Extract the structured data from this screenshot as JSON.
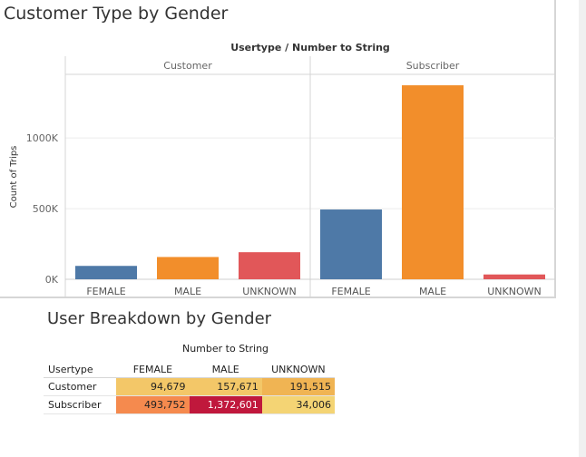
{
  "bar_chart": {
    "title": "Customer Type by Gender",
    "header_title": "Usertype / Number to String",
    "ylabel": "Count of Trips",
    "yticks": [
      {
        "value": 0,
        "label": "0K"
      },
      {
        "value": 500000,
        "label": "500K"
      },
      {
        "value": 1000000,
        "label": "1000K"
      }
    ]
  },
  "table": {
    "title": "User Breakdown by Gender",
    "column_group_header": "Number to String",
    "corner_header": "Usertype",
    "columns": [
      "FEMALE",
      "MALE",
      "UNKNOWN"
    ],
    "rows": [
      {
        "label": "Customer",
        "cells": [
          "94,679",
          "157,671",
          "191,515"
        ],
        "colors": [
          "#f3c768",
          "#f3c768",
          "#f0b453"
        ]
      },
      {
        "label": "Subscriber",
        "cells": [
          "493,752",
          "1,372,601",
          "34,006"
        ],
        "colors": [
          "#f58a4e",
          "#c0183c",
          "#f4d474"
        ]
      }
    ]
  },
  "chart_data": [
    {
      "type": "bar",
      "title": "Customer Type by Gender",
      "column_header": "Usertype / Number to String",
      "ylabel": "Count of Trips",
      "ylim": [
        0,
        1450000
      ],
      "grid": true,
      "panels": [
        "Customer",
        "Subscriber"
      ],
      "categories": [
        "FEMALE",
        "MALE",
        "UNKNOWN"
      ],
      "colors": {
        "FEMALE": "#4e79a7",
        "MALE": "#f28e2b",
        "UNKNOWN": "#e15759"
      },
      "series": [
        {
          "name": "Customer",
          "values": [
            94679,
            157671,
            191515
          ]
        },
        {
          "name": "Subscriber",
          "values": [
            493752,
            1372601,
            34006
          ]
        }
      ]
    },
    {
      "type": "table",
      "title": "User Breakdown by Gender",
      "column_header": "Number to String",
      "row_header": "Usertype",
      "columns": [
        "FEMALE",
        "MALE",
        "UNKNOWN"
      ],
      "rows": [
        "Customer",
        "Subscriber"
      ],
      "values": [
        [
          94679,
          157671,
          191515
        ],
        [
          493752,
          1372601,
          34006
        ]
      ]
    }
  ]
}
